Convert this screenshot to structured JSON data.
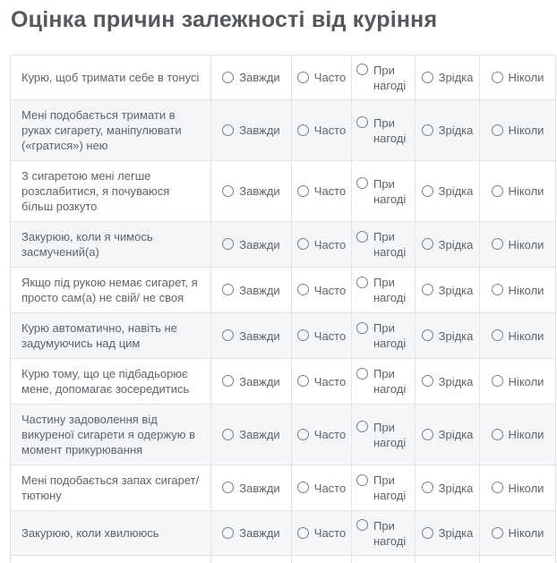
{
  "title": "Оцінка причин залежності від куріння",
  "table": {
    "options": [
      "Завжди",
      "Часто",
      "При нагоді",
      "Зрідка",
      "Ніколи"
    ],
    "questions": [
      {
        "text": "Курю, щоб тримати себе в тонусі"
      },
      {
        "text": "Мені подобається тримати в руках сигарету, маніпулювати («гратися») нею"
      },
      {
        "text": "З сигаретою мені легше розслабитися, я почуваюся більш розкуто"
      },
      {
        "text": "Закурюю, коли я чимось засмучений(а)"
      },
      {
        "text": "Якщо під рукою немає сигарет, я просто сам(а) не свій/ не своя"
      },
      {
        "text": "Курю автоматично, навіть не задумуючись над цим"
      },
      {
        "text": "Курю тому, що це підбадьорює мене, допомагає зосередитись"
      },
      {
        "text": "Частину задоволення від викуреної сигарети я одержую в момент прикурювання"
      },
      {
        "text": "Мені подобається запах сигарет/ тютюну"
      },
      {
        "text": "Закурюю, коли хвилююсь"
      }
    ],
    "selected": null
  },
  "colors": {
    "title_text": "#55585c",
    "body_text": "#5f6468",
    "border": "#e2e4e7",
    "alt_row_bg": "#f5f6f8",
    "radio_border": "#7c8085"
  }
}
